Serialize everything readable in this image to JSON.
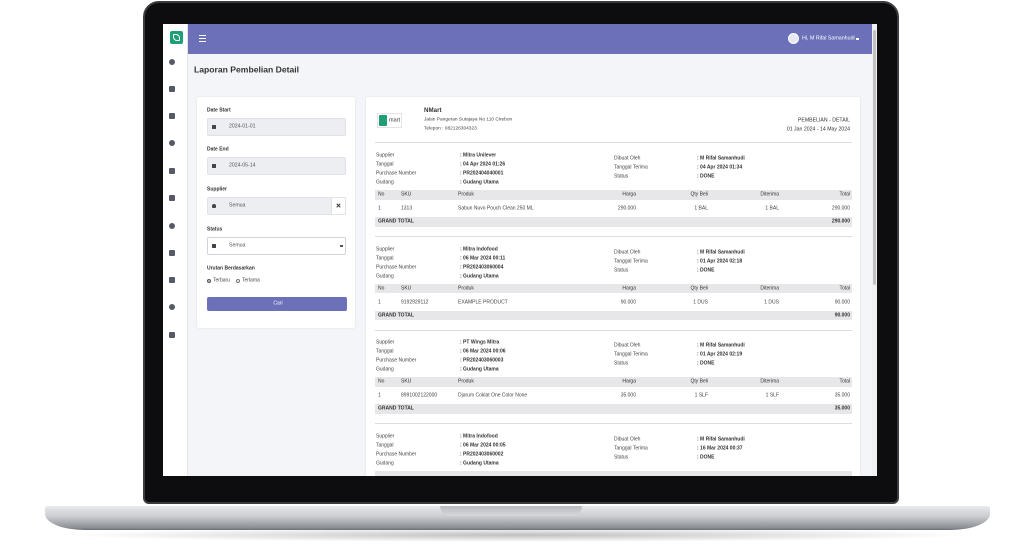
{
  "header": {
    "user": "Hi, M Rifal Samanhudi"
  },
  "page_title": "Laporan Pembelian Detail",
  "filters": {
    "date_start": {
      "label": "Date Start",
      "value": "2024-01-01"
    },
    "date_end": {
      "label": "Date End",
      "value": "2024-05-14"
    },
    "supplier": {
      "label": "Supplier",
      "value": "Semua"
    },
    "status": {
      "label": "Status",
      "value": "Semua"
    },
    "sort": {
      "label": "Urutan Berdasarkan",
      "options": [
        "Terbaru",
        "Terlama"
      ]
    },
    "button": "Cari"
  },
  "report": {
    "logo": "mart",
    "company": "NMart",
    "address": "Jalan Pangeran Sutajaya No 110 Cirebon",
    "phone": "Telepon : 082126304323",
    "title": "PEMBELIAN - DETAIL",
    "period": "01 Jan 2024 - 14 May 2024",
    "labels": {
      "supplier": "Supplier",
      "date": "Tanggal",
      "po": "Purchase Number",
      "warehouse": "Gudang",
      "created_by": "Dibuat Oleh",
      "received_date": "Tanggal Terima",
      "status": "Status"
    },
    "columns": [
      "No",
      "SKU",
      "Produk",
      "Harga",
      "Qty Beli",
      "Diterima",
      "Total"
    ],
    "grand_total_label": "GRAND TOTAL",
    "entries": [
      {
        "supplier": ": Mitra Unilever",
        "date": ": 04 Apr 2024 01:26",
        "po": ": PR202404040001",
        "warehouse": ": Gudang Utama",
        "created_by": ": M Rifal Samanhudi",
        "received_date": ": 04 Apr 2024 01:34",
        "status": ": DONE",
        "items": [
          [
            "1",
            "1313",
            "Sabun Nuvo Pouch Clean 250 ML",
            "290.000",
            "1 BAL",
            "1 BAL",
            "290.000"
          ]
        ],
        "grand_total": "290.000"
      },
      {
        "supplier": ": Mitra Indofood",
        "date": ": 06 Mar 2024 00:11",
        "po": ": PR202403060004",
        "warehouse": ": Gudang Utama",
        "created_by": ": M Rifal Samanhudi",
        "received_date": ": 01 Apr 2024 02:18",
        "status": ": DONE",
        "items": [
          [
            "1",
            "9192929112",
            "EXAMPLE PRODUCT",
            "90.000",
            "1 DUS",
            "1 DUS",
            "90.000"
          ]
        ],
        "grand_total": "90.000"
      },
      {
        "supplier": ": PT Wings Mitra",
        "date": ": 06 Mar 2024 00:06",
        "po": ": PR202403060003",
        "warehouse": ": Gudang Utama",
        "created_by": ": M Rifal Samanhudi",
        "received_date": ": 01 Apr 2024 02:19",
        "status": ": DONE",
        "items": [
          [
            "1",
            "8991002122000",
            "Djarum Coklat One Color None",
            "35.000",
            "1 SLF",
            "1 SLF",
            "35.000"
          ]
        ],
        "grand_total": "35.000"
      },
      {
        "supplier": ": Mitra Indofood",
        "date": ": 06 Mar 2024 00:05",
        "po": ": PR202403060002",
        "warehouse": ": Gudang Utama",
        "created_by": ": M Rifal Samanhudi",
        "received_date": ": 16 Mar 2024 00:37",
        "status": ": DONE",
        "items": []
      }
    ]
  }
}
